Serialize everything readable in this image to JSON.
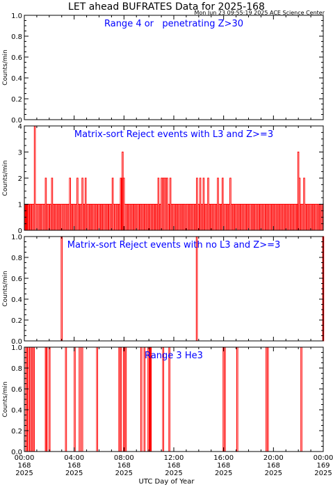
{
  "title": "LET ahead BUFRATES Data for 2025-168",
  "subtitle": "Mon Jun 23 09:55:19 2025 ACE Science Center",
  "xlabel": "UTC Day of Year",
  "colors": {
    "series": "#ff0000",
    "panel_label": "#0000ff",
    "axes": "#000000"
  },
  "x_ticks": [
    {
      "time": "00:00",
      "doy": "168",
      "year": "2025"
    },
    {
      "time": "04:00",
      "doy": "168",
      "year": "2025"
    },
    {
      "time": "08:00",
      "doy": "168",
      "year": "2025"
    },
    {
      "time": "12:00",
      "doy": "168",
      "year": "2025"
    },
    {
      "time": "16:00",
      "doy": "168",
      "year": "2025"
    },
    {
      "time": "20:00",
      "doy": "168",
      "year": "2025"
    },
    {
      "time": "00:00",
      "doy": "169",
      "year": "2025"
    }
  ],
  "chart_data": [
    {
      "type": "line",
      "label": "Range 4 or   penetrating Z>30",
      "ylabel": "Counts/min",
      "xlim_hours": [
        0,
        24
      ],
      "ylim": [
        0,
        1
      ],
      "yticks": [
        "0.0",
        "0.2",
        "0.4",
        "0.6",
        "0.8",
        "1.0"
      ],
      "spikes": []
    },
    {
      "type": "line",
      "label": "Matrix-sort Reject events with L3 and Z>=3",
      "ylabel": "Counts/min",
      "xlim_hours": [
        0,
        24
      ],
      "ylim": [
        0,
        4
      ],
      "yticks": [
        "0",
        "1",
        "2",
        "3",
        "4"
      ],
      "spikes": [
        [
          0.06,
          1
        ],
        [
          0.12,
          1
        ],
        [
          0.18,
          1
        ],
        [
          0.26,
          1
        ],
        [
          0.34,
          1
        ],
        [
          0.42,
          1
        ],
        [
          0.5,
          1
        ],
        [
          0.58,
          1
        ],
        [
          0.68,
          1
        ],
        [
          0.8,
          4
        ],
        [
          0.9,
          1
        ],
        [
          1.0,
          1
        ],
        [
          1.1,
          1
        ],
        [
          1.22,
          1
        ],
        [
          1.35,
          1
        ],
        [
          1.45,
          1
        ],
        [
          1.55,
          1
        ],
        [
          1.68,
          2
        ],
        [
          1.8,
          1
        ],
        [
          1.9,
          1
        ],
        [
          2.05,
          1
        ],
        [
          2.18,
          2
        ],
        [
          2.3,
          1
        ],
        [
          2.42,
          1
        ],
        [
          2.55,
          1
        ],
        [
          2.68,
          1
        ],
        [
          2.8,
          1
        ],
        [
          2.95,
          1
        ],
        [
          3.05,
          1
        ],
        [
          3.15,
          1
        ],
        [
          3.28,
          1
        ],
        [
          3.4,
          1
        ],
        [
          3.52,
          1
        ],
        [
          3.62,
          2
        ],
        [
          3.75,
          1
        ],
        [
          3.88,
          1
        ],
        [
          4.0,
          1
        ],
        [
          4.12,
          1
        ],
        [
          4.22,
          2
        ],
        [
          4.35,
          1
        ],
        [
          4.5,
          1
        ],
        [
          4.62,
          2
        ],
        [
          4.75,
          1
        ],
        [
          4.88,
          2
        ],
        [
          5.0,
          1
        ],
        [
          5.12,
          1
        ],
        [
          5.25,
          1
        ],
        [
          5.38,
          1
        ],
        [
          5.5,
          1
        ],
        [
          5.62,
          1
        ],
        [
          5.75,
          1
        ],
        [
          5.9,
          1
        ],
        [
          6.02,
          1
        ],
        [
          6.15,
          1
        ],
        [
          6.28,
          1
        ],
        [
          6.4,
          1
        ],
        [
          6.52,
          1
        ],
        [
          6.65,
          1
        ],
        [
          6.78,
          1
        ],
        [
          6.9,
          1
        ],
        [
          7.05,
          2
        ],
        [
          7.15,
          1
        ],
        [
          7.3,
          1
        ],
        [
          7.42,
          1
        ],
        [
          7.55,
          1
        ],
        [
          7.7,
          2
        ],
        [
          7.78,
          2
        ],
        [
          7.85,
          3
        ],
        [
          7.95,
          2
        ],
        [
          8.05,
          1
        ],
        [
          8.15,
          1
        ],
        [
          8.28,
          1
        ],
        [
          8.4,
          1
        ],
        [
          8.52,
          1
        ],
        [
          8.65,
          1
        ],
        [
          8.78,
          1
        ],
        [
          8.9,
          1
        ],
        [
          9.02,
          1
        ],
        [
          9.15,
          1
        ],
        [
          9.28,
          1
        ],
        [
          9.4,
          1
        ],
        [
          9.55,
          1
        ],
        [
          9.68,
          1
        ],
        [
          9.8,
          1
        ],
        [
          9.95,
          1
        ],
        [
          10.08,
          1
        ],
        [
          10.2,
          1
        ],
        [
          10.32,
          1
        ],
        [
          10.45,
          1
        ],
        [
          10.58,
          1
        ],
        [
          10.72,
          2
        ],
        [
          10.85,
          1
        ],
        [
          10.98,
          2
        ],
        [
          11.1,
          2
        ],
        [
          11.2,
          2
        ],
        [
          11.3,
          2
        ],
        [
          11.42,
          2
        ],
        [
          11.55,
          1
        ],
        [
          11.68,
          2
        ],
        [
          11.8,
          1
        ],
        [
          11.92,
          1
        ],
        [
          12.05,
          1
        ],
        [
          12.18,
          1
        ],
        [
          12.3,
          1
        ],
        [
          12.42,
          1
        ],
        [
          12.55,
          1
        ],
        [
          12.68,
          1
        ],
        [
          12.8,
          1
        ],
        [
          12.95,
          1
        ],
        [
          13.05,
          1
        ],
        [
          13.18,
          1
        ],
        [
          13.3,
          1
        ],
        [
          13.42,
          1
        ],
        [
          13.55,
          1
        ],
        [
          13.68,
          1
        ],
        [
          13.82,
          2
        ],
        [
          13.95,
          1
        ],
        [
          14.08,
          2
        ],
        [
          14.22,
          1
        ],
        [
          14.35,
          2
        ],
        [
          14.48,
          1
        ],
        [
          14.6,
          1
        ],
        [
          14.72,
          2
        ],
        [
          14.85,
          1
        ],
        [
          14.98,
          1
        ],
        [
          15.1,
          1
        ],
        [
          15.22,
          1
        ],
        [
          15.35,
          1
        ],
        [
          15.5,
          2
        ],
        [
          15.62,
          1
        ],
        [
          15.75,
          1
        ],
        [
          15.88,
          2
        ],
        [
          16.0,
          1
        ],
        [
          16.12,
          1
        ],
        [
          16.25,
          1
        ],
        [
          16.38,
          1
        ],
        [
          16.5,
          2
        ],
        [
          16.62,
          1
        ],
        [
          16.75,
          1
        ],
        [
          16.88,
          1
        ],
        [
          17.0,
          1
        ],
        [
          17.12,
          1
        ],
        [
          17.25,
          1
        ],
        [
          17.38,
          1
        ],
        [
          17.5,
          1
        ],
        [
          17.62,
          1
        ],
        [
          17.75,
          1
        ],
        [
          17.88,
          1
        ],
        [
          18.0,
          1
        ],
        [
          18.12,
          1
        ],
        [
          18.25,
          1
        ],
        [
          18.38,
          1
        ],
        [
          18.5,
          1
        ],
        [
          18.62,
          1
        ],
        [
          18.75,
          1
        ],
        [
          18.88,
          1
        ],
        [
          19.0,
          1
        ],
        [
          19.12,
          1
        ],
        [
          19.25,
          1
        ],
        [
          19.38,
          1
        ],
        [
          19.5,
          1
        ],
        [
          19.62,
          1
        ],
        [
          19.75,
          1
        ],
        [
          19.88,
          1
        ],
        [
          20.0,
          1
        ],
        [
          20.12,
          1
        ],
        [
          20.25,
          1
        ],
        [
          20.38,
          1
        ],
        [
          20.5,
          1
        ],
        [
          20.62,
          1
        ],
        [
          20.75,
          1
        ],
        [
          20.88,
          1
        ],
        [
          21.0,
          1
        ],
        [
          21.12,
          1
        ],
        [
          21.25,
          1
        ],
        [
          21.38,
          1
        ],
        [
          21.5,
          1
        ],
        [
          21.62,
          1
        ],
        [
          21.75,
          1
        ],
        [
          21.88,
          1
        ],
        [
          21.95,
          3
        ],
        [
          22.05,
          2
        ],
        [
          22.18,
          1
        ],
        [
          22.3,
          1
        ],
        [
          22.42,
          2
        ],
        [
          22.55,
          1
        ],
        [
          22.68,
          1
        ],
        [
          22.8,
          1
        ],
        [
          22.92,
          1
        ],
        [
          23.05,
          1
        ],
        [
          23.18,
          1
        ],
        [
          23.3,
          1
        ],
        [
          23.42,
          1
        ],
        [
          23.55,
          1
        ],
        [
          23.68,
          1
        ],
        [
          23.8,
          1
        ],
        [
          23.92,
          1
        ]
      ]
    },
    {
      "type": "line",
      "label": "Matrix-sort Reject events with no L3 and Z>=3",
      "ylabel": "Counts/min",
      "xlim_hours": [
        0,
        24
      ],
      "ylim": [
        0,
        1
      ],
      "yticks": [
        "0.0",
        "0.2",
        "0.4",
        "0.6",
        "0.8",
        "1.0"
      ],
      "spikes": [
        [
          2.95,
          1
        ],
        [
          13.8,
          1
        ],
        [
          23.95,
          1
        ]
      ]
    },
    {
      "type": "line",
      "label": "Range 3 He3",
      "ylabel": "Counts/min",
      "xlim_hours": [
        0,
        24
      ],
      "ylim": [
        0,
        1
      ],
      "yticks": [
        "0.0",
        "0.2",
        "0.4",
        "0.6",
        "0.8",
        "1.0"
      ],
      "spikes": [
        [
          0.1,
          1
        ],
        [
          0.25,
          1
        ],
        [
          0.42,
          1
        ],
        [
          0.52,
          1
        ],
        [
          0.6,
          1
        ],
        [
          0.72,
          1
        ],
        [
          1.68,
          1
        ],
        [
          1.75,
          1
        ],
        [
          1.98,
          1
        ],
        [
          3.3,
          1
        ],
        [
          4.0,
          1
        ],
        [
          4.4,
          1
        ],
        [
          4.6,
          1
        ],
        [
          5.8,
          1
        ],
        [
          7.58,
          1
        ],
        [
          7.7,
          1
        ],
        [
          7.95,
          1
        ],
        [
          8.1,
          1
        ],
        [
          9.35,
          1
        ],
        [
          9.6,
          1
        ],
        [
          9.92,
          1
        ],
        [
          10.05,
          1
        ],
        [
          10.1,
          1
        ],
        [
          11.1,
          1
        ],
        [
          11.6,
          1
        ],
        [
          15.95,
          1
        ],
        [
          16.05,
          1
        ],
        [
          17.05,
          1
        ],
        [
          19.4,
          1
        ],
        [
          19.5,
          1
        ],
        [
          22.2,
          1
        ]
      ]
    }
  ]
}
